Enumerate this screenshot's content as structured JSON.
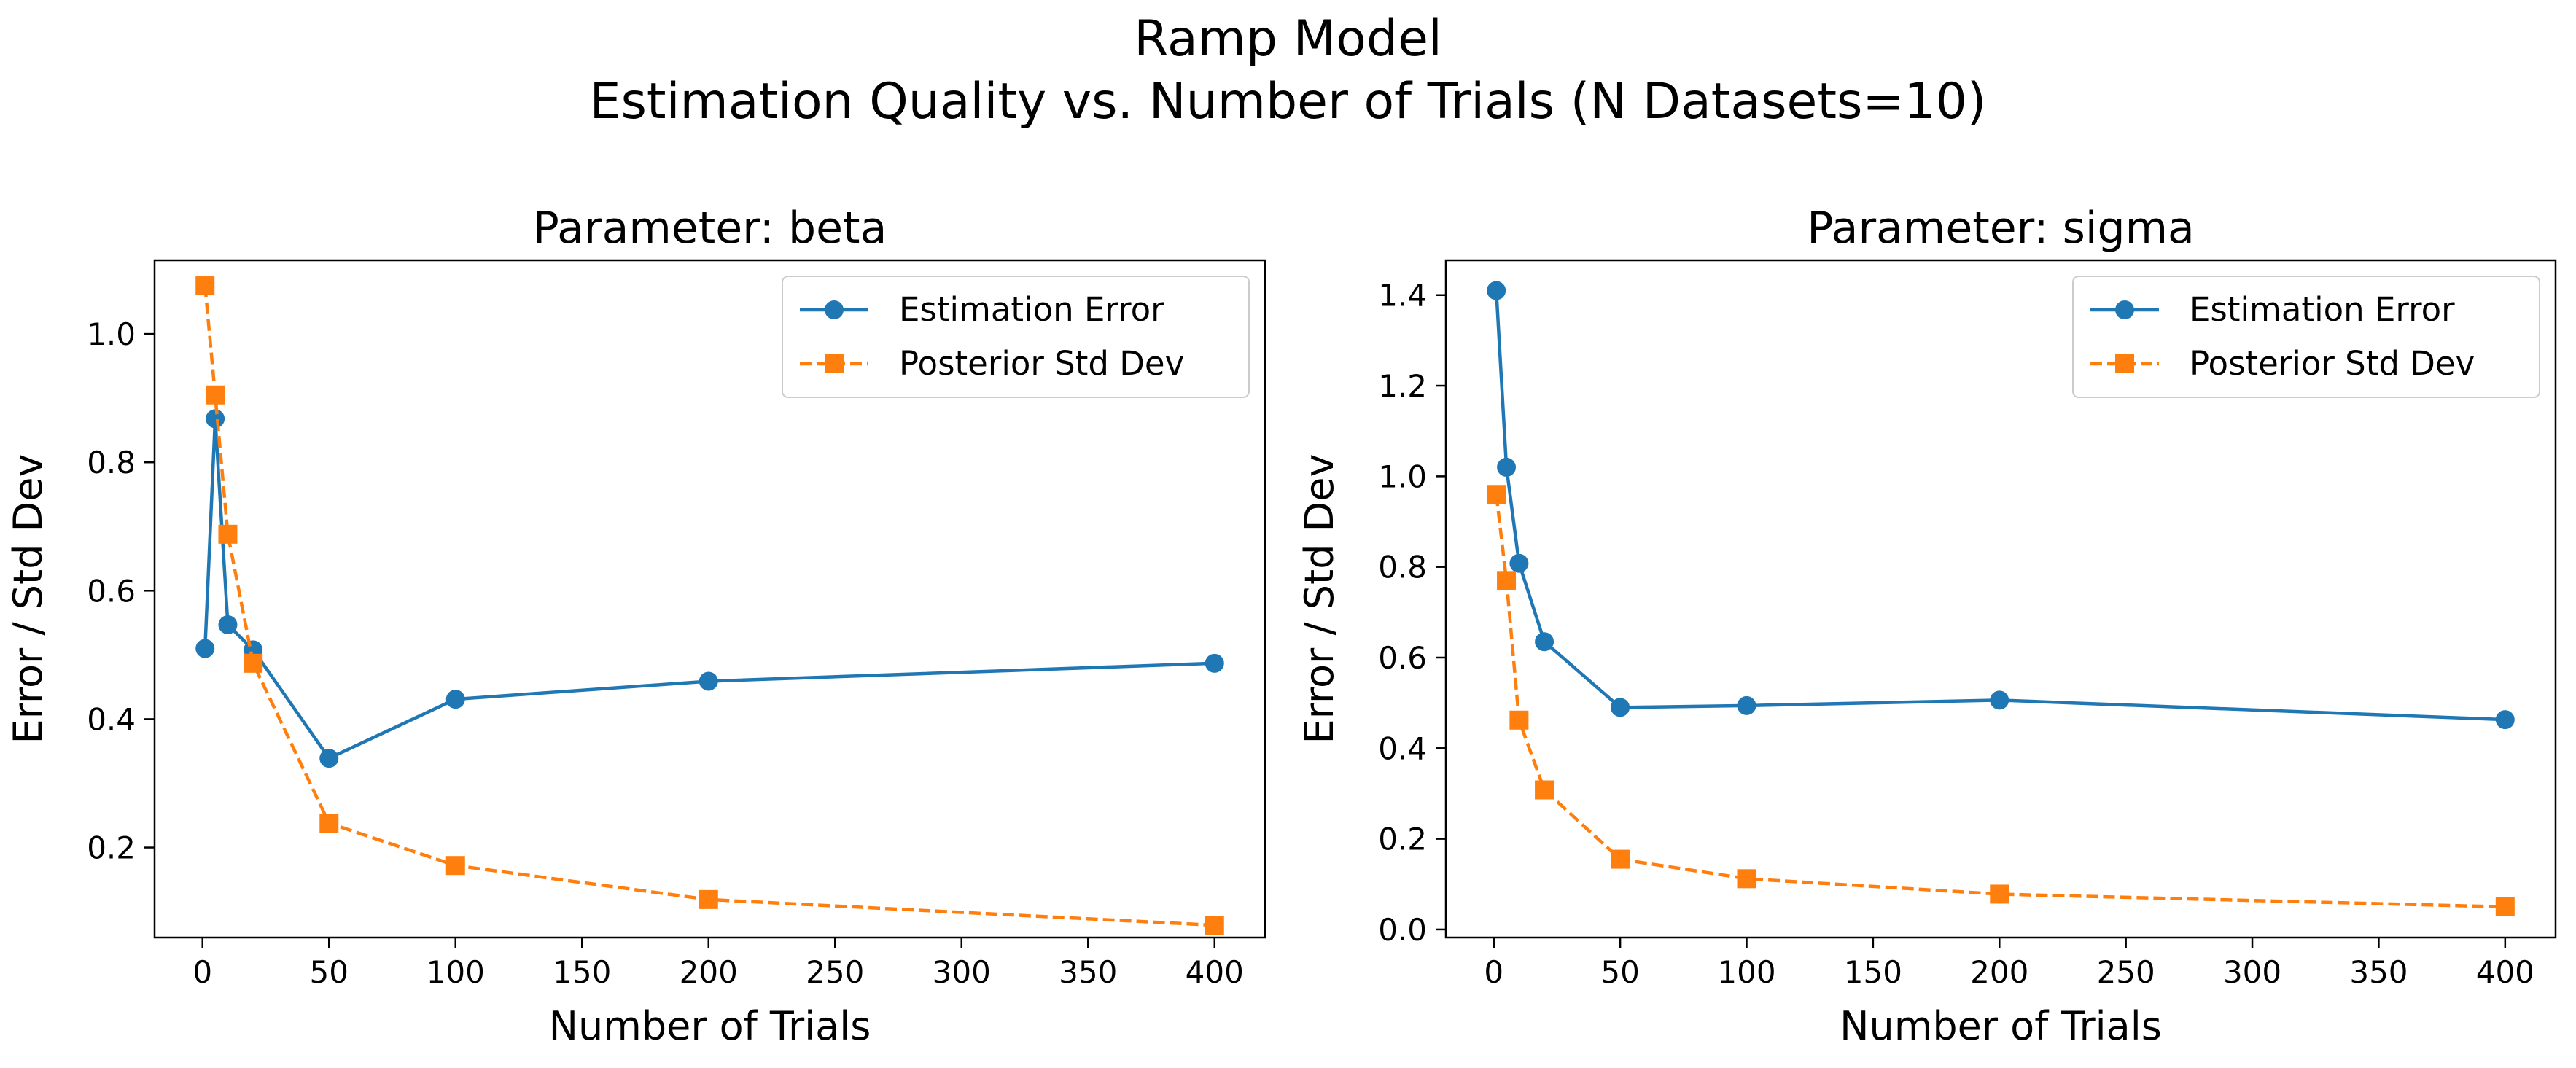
{
  "suptitle": {
    "line1": "Ramp Model",
    "line2": "Estimation Quality vs. Number of Trials (N Datasets=10)"
  },
  "colors": {
    "error": "#1f77b4",
    "std": "#ff7f0e"
  },
  "chart_data": [
    {
      "type": "line",
      "title": "Parameter: beta",
      "xlabel": "Number of Trials",
      "ylabel": "Error / Std Dev",
      "x": [
        1,
        5,
        10,
        20,
        50,
        100,
        200,
        400
      ],
      "xlim": [
        -18.95,
        419.95
      ],
      "ylim": [
        0.0598,
        1.1148
      ],
      "xticks": [
        0,
        50,
        100,
        150,
        200,
        250,
        300,
        350,
        400
      ],
      "yticks": [
        0.2,
        0.4,
        0.6,
        0.8,
        1.0
      ],
      "ytick_labels": [
        "0.2",
        "0.4",
        "0.6",
        "0.8",
        "1.0"
      ],
      "legend": "top-right",
      "grid": false,
      "series": [
        {
          "name": "Estimation Error",
          "marker": "circle",
          "style": "solid",
          "values": [
            0.51,
            0.868,
            0.547,
            0.508,
            0.339,
            0.431,
            0.459,
            0.487
          ]
        },
        {
          "name": "Posterior Std Dev",
          "marker": "square",
          "style": "dashed",
          "values": [
            1.075,
            0.905,
            0.688,
            0.487,
            0.238,
            0.172,
            0.119,
            0.079
          ]
        }
      ]
    },
    {
      "type": "line",
      "title": "Parameter: sigma",
      "xlabel": "Number of Trials",
      "ylabel": "Error / Std Dev",
      "x": [
        1,
        5,
        10,
        20,
        50,
        100,
        200,
        400
      ],
      "xlim": [
        -18.95,
        419.95
      ],
      "ylim": [
        -0.0178,
        1.4768
      ],
      "xticks": [
        0,
        50,
        100,
        150,
        200,
        250,
        300,
        350,
        400
      ],
      "yticks": [
        0.0,
        0.2,
        0.4,
        0.6,
        0.8,
        1.0,
        1.2,
        1.4
      ],
      "ytick_labels": [
        "0.0",
        "0.2",
        "0.4",
        "0.6",
        "0.8",
        "1.0",
        "1.2",
        "1.4"
      ],
      "legend": "top-right",
      "grid": false,
      "series": [
        {
          "name": "Estimation Error",
          "marker": "circle",
          "style": "solid",
          "values": [
            1.41,
            1.02,
            0.808,
            0.635,
            0.49,
            0.494,
            0.506,
            0.463
          ]
        },
        {
          "name": "Posterior Std Dev",
          "marker": "square",
          "style": "dashed",
          "values": [
            0.96,
            0.77,
            0.462,
            0.308,
            0.155,
            0.112,
            0.078,
            0.05
          ]
        }
      ]
    }
  ]
}
